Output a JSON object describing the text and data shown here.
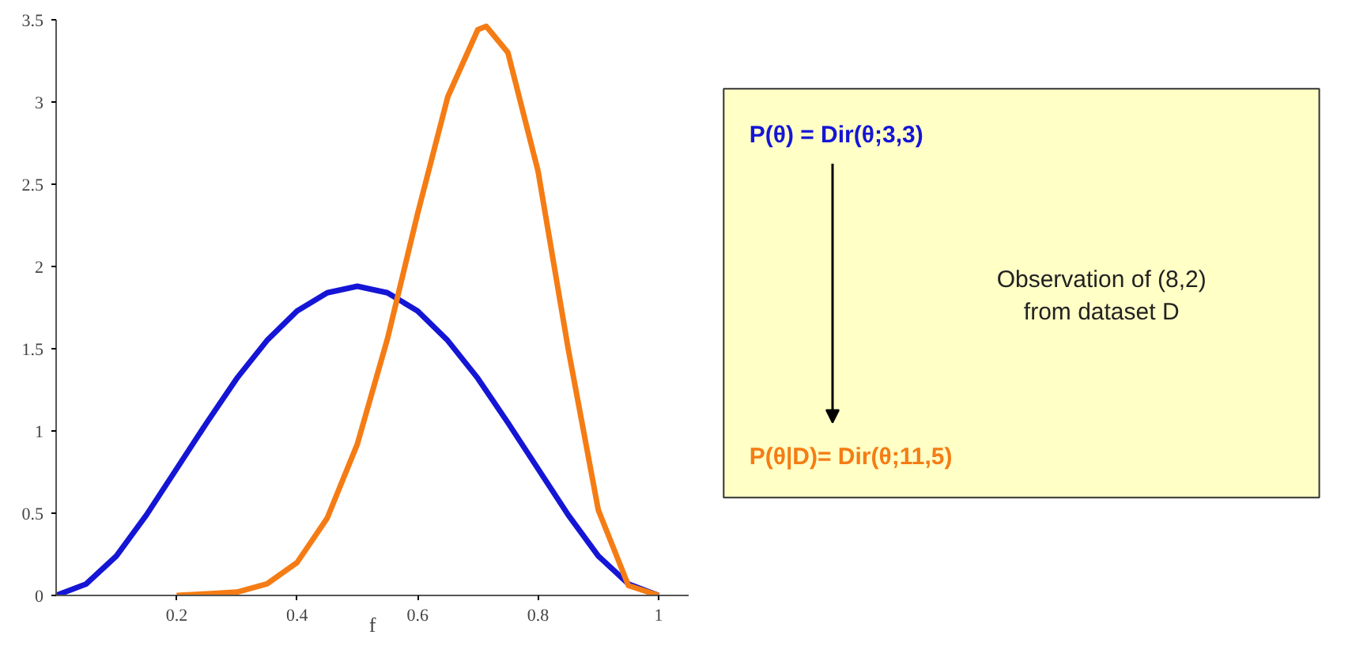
{
  "chart_data": {
    "type": "line",
    "xlabel": "f",
    "xlim": [
      0,
      1.05
    ],
    "xticks": [
      0.2,
      0.4,
      0.6,
      0.8,
      1
    ],
    "ylim": [
      0,
      3.5
    ],
    "yticks": [
      0,
      0.5,
      1,
      1.5,
      2,
      2.5,
      3,
      3.5
    ],
    "grid": false,
    "marker": "none",
    "line_style": "solid",
    "series": [
      {
        "color": "#1515d6",
        "x": [
          0,
          0.05,
          0.1,
          0.15,
          0.2,
          0.25,
          0.3,
          0.35,
          0.4,
          0.45,
          0.5,
          0.55,
          0.6,
          0.65,
          0.7,
          0.75,
          0.8,
          0.85,
          0.9,
          0.95,
          1
        ],
        "values": [
          0,
          0.07,
          0.24,
          0.49,
          0.77,
          1.05,
          1.32,
          1.55,
          1.73,
          1.84,
          1.88,
          1.84,
          1.73,
          1.55,
          1.32,
          1.05,
          0.77,
          0.49,
          0.24,
          0.07,
          0
        ]
      },
      {
        "color": "#f57c14",
        "x": [
          0.2,
          0.25,
          0.3,
          0.35,
          0.4,
          0.45,
          0.5,
          0.55,
          0.6,
          0.65,
          0.7,
          0.714,
          0.75,
          0.8,
          0.85,
          0.9,
          0.95,
          1
        ],
        "values": [
          0,
          0.01,
          0.02,
          0.07,
          0.2,
          0.47,
          0.92,
          1.56,
          2.32,
          3.03,
          3.44,
          3.46,
          3.3,
          2.58,
          1.5,
          0.52,
          0.06,
          0
        ]
      }
    ],
    "annotations": [
      "P(θ) = Dir(θ;3,3)",
      "Observation of (8,2)\nfrom dataset D",
      "P(θ|D)= Dir(θ;11,5)"
    ]
  }
}
